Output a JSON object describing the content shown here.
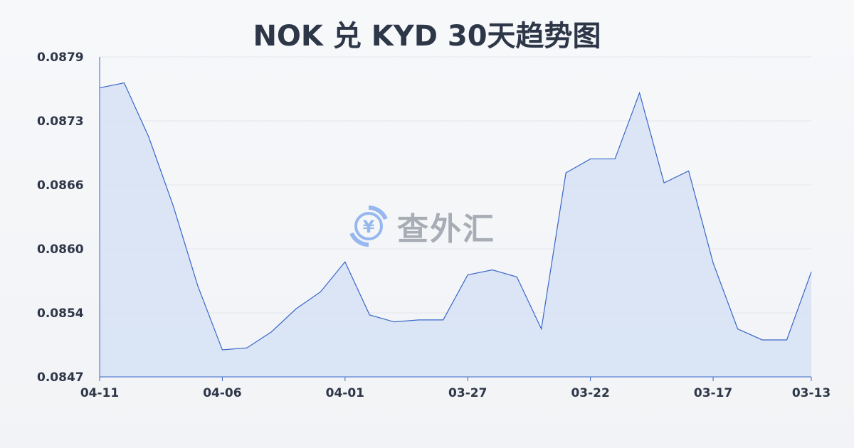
{
  "chart_data": {
    "type": "area",
    "title": "NOK 兑 KYD 30天趋势图",
    "xlabel": "",
    "ylabel": "",
    "x": [
      "04-11",
      "04-10",
      "04-09",
      "04-08",
      "04-07",
      "04-06",
      "04-05",
      "04-04",
      "04-03",
      "04-02",
      "04-01",
      "03-31",
      "03-30",
      "03-29",
      "03-28",
      "03-27",
      "03-26",
      "03-25",
      "03-24",
      "03-23",
      "03-22",
      "03-21",
      "03-20",
      "03-19",
      "03-18",
      "03-17",
      "03-16",
      "03-15",
      "03-14",
      "03-13"
    ],
    "values": [
      0.08759,
      0.08764,
      0.0871,
      0.08641,
      0.08561,
      0.08497,
      0.08499,
      0.08515,
      0.08538,
      0.08555,
      0.08585,
      0.08532,
      0.08525,
      0.08527,
      0.08527,
      0.08572,
      0.08577,
      0.0857,
      0.08518,
      0.08674,
      0.08688,
      0.08688,
      0.08754,
      0.08664,
      0.08676,
      0.08584,
      0.08518,
      0.08507,
      0.08507,
      0.08575
    ],
    "ylim": [
      0.0847,
      0.0879
    ],
    "yticks": [
      "0.0879",
      "0.0873",
      "0.0866",
      "0.0860",
      "0.0854",
      "0.0847"
    ],
    "xticks": [
      "04-11",
      "04-06",
      "04-01",
      "03-27",
      "03-22",
      "03-17",
      "03-13"
    ],
    "grid": true,
    "colors": {
      "line": "#3a66c9",
      "fill": "#d6e2f6",
      "grid": "#e3e6ea"
    }
  },
  "watermark": {
    "text": "查外汇",
    "icon": "yuan-exchange-icon"
  }
}
